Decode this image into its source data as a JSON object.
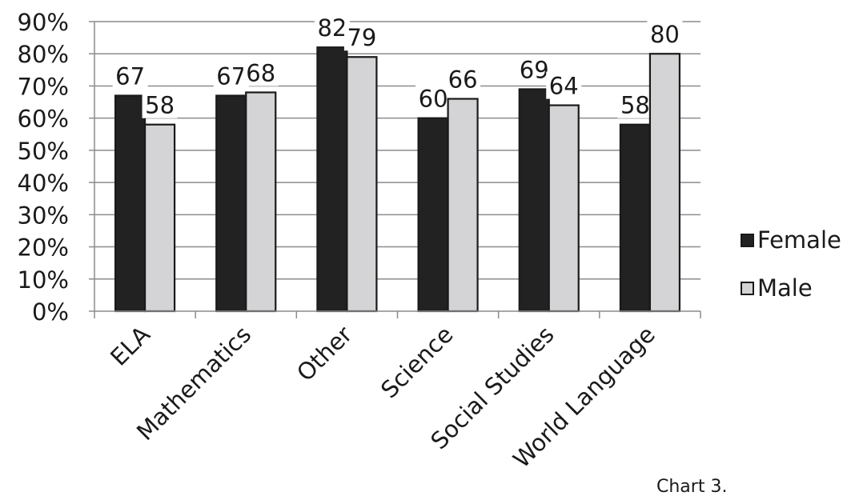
{
  "chart_data": {
    "type": "bar",
    "categories": [
      "ELA",
      "Mathematics",
      "Other",
      "Science",
      "Social Studies",
      "World Language"
    ],
    "series": [
      {
        "name": "Female",
        "values": [
          67,
          67,
          82,
          60,
          69,
          58
        ],
        "color": "#222222"
      },
      {
        "name": "Male",
        "values": [
          58,
          68,
          79,
          66,
          64,
          80
        ],
        "color": "#d4d4d6"
      }
    ],
    "ylim": [
      0,
      90
    ],
    "y_ticks": [
      "0%",
      "10%",
      "20%",
      "30%",
      "40%",
      "50%",
      "60%",
      "70%",
      "80%",
      "90%"
    ],
    "grid": true,
    "legend_position": "right"
  },
  "caption": "Chart 3."
}
